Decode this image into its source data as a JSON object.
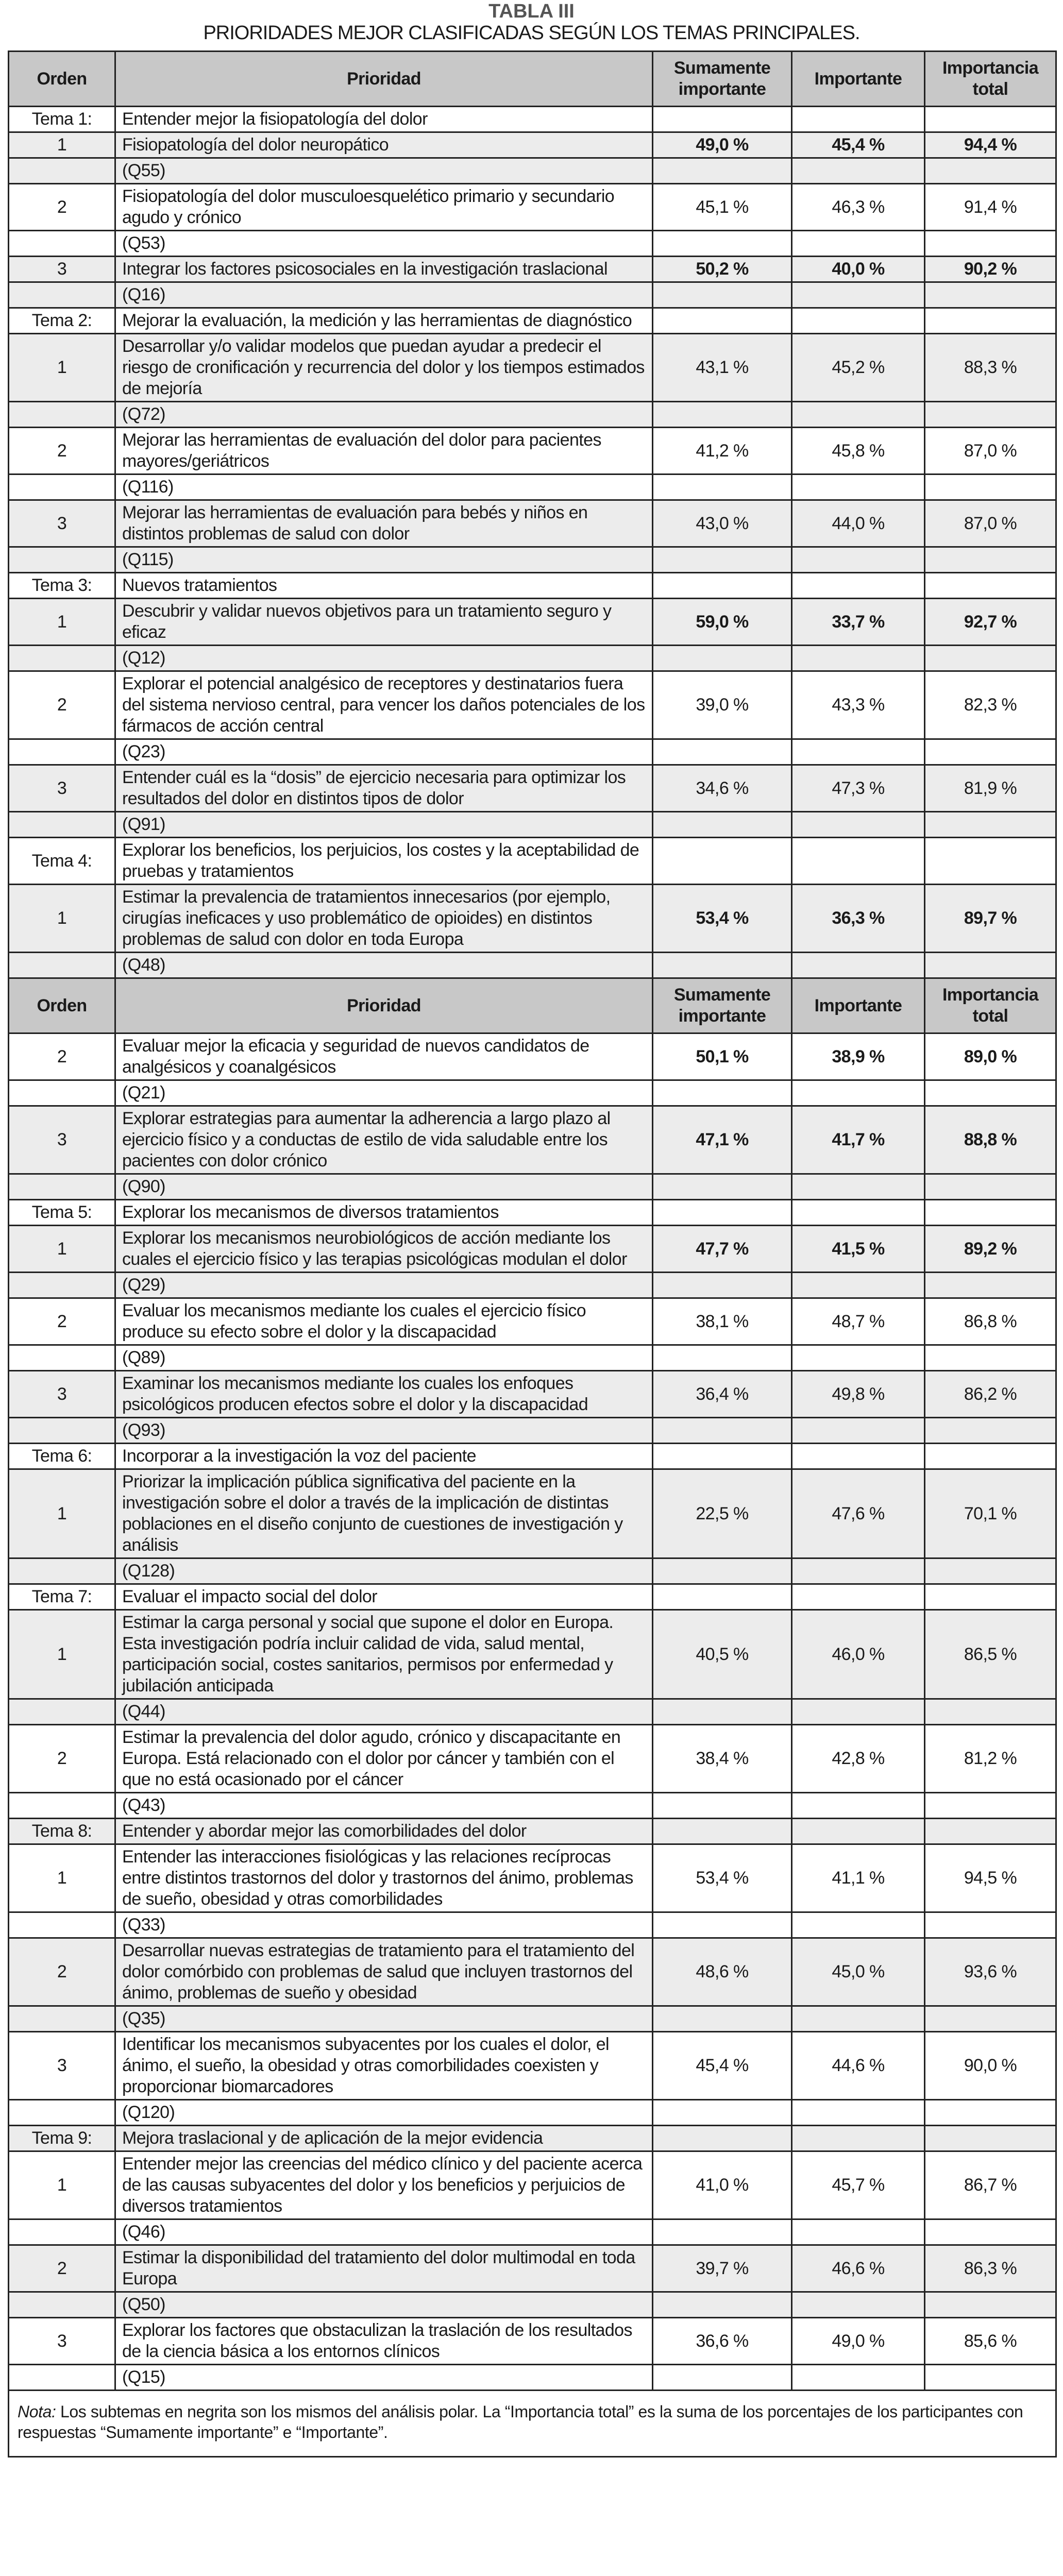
{
  "title": "TABLA III",
  "subtitle": "PRIORIDADES MEJOR CLASIFICADAS SEGÚN LOS TEMAS PRINCIPALES.",
  "headers": [
    "Orden",
    "Prioridad",
    "Sumamente importante",
    "Importante",
    "Importancia total"
  ],
  "rows": [
    {
      "type": "tema",
      "orden": "Tema 1:",
      "text": "Entender mejor la fisiopatología del dolor",
      "shade": false
    },
    {
      "type": "item",
      "orden": "1",
      "text": "Fisiopatología del dolor neuropático",
      "sum": "49,0 %",
      "imp": "45,4 %",
      "total": "94,4 %",
      "bold": true,
      "shade": true
    },
    {
      "type": "ref",
      "text": "(Q55)",
      "shade": true
    },
    {
      "type": "item",
      "orden": "2",
      "text": "Fisiopatología del dolor musculoesquelético primario y secundario agudo y crónico",
      "sum": "45,1 %",
      "imp": "46,3 %",
      "total": "91,4 %",
      "bold": false,
      "shade": false
    },
    {
      "type": "ref",
      "text": "(Q53)",
      "shade": false
    },
    {
      "type": "item",
      "orden": "3",
      "text": "Integrar los factores psicosociales en la investigación traslacional",
      "sum": "50,2  %",
      "imp": "40,0 %",
      "total": "90,2 %",
      "bold": true,
      "shade": true
    },
    {
      "type": "ref",
      "text": "(Q16)",
      "shade": true
    },
    {
      "type": "tema",
      "orden": "Tema 2:",
      "text": "Mejorar la evaluación, la medición y las herramientas de diagnóstico",
      "shade": false
    },
    {
      "type": "item",
      "orden": "1",
      "text": "Desarrollar y/o validar modelos que puedan ayudar a predecir el riesgo de cronificación y recurrencia del dolor y los tiempos estimados de mejoría",
      "sum": "43,1 %",
      "imp": "45,2 %",
      "total": "88,3 %",
      "bold": false,
      "shade": true
    },
    {
      "type": "ref",
      "text": "(Q72)",
      "shade": true
    },
    {
      "type": "item",
      "orden": "2",
      "text": "Mejorar las herramientas de evaluación del dolor para pacientes mayores/geriátricos",
      "sum": "41,2 %",
      "imp": "45,8 %",
      "total": "87,0 %",
      "bold": false,
      "shade": false
    },
    {
      "type": "ref",
      "text": "(Q116)",
      "shade": false
    },
    {
      "type": "item",
      "orden": "3",
      "text": "Mejorar las herramientas de evaluación para bebés y niños en distintos problemas de salud con dolor",
      "sum": "43,0 %",
      "imp": "44,0 %",
      "total": "87,0 %",
      "bold": false,
      "shade": true
    },
    {
      "type": "ref",
      "text": "(Q115)",
      "shade": true
    },
    {
      "type": "tema",
      "orden": "Tema 3:",
      "text": "Nuevos tratamientos",
      "shade": false
    },
    {
      "type": "item",
      "orden": "1",
      "text": "Descubrir y validar nuevos objetivos para un tratamiento seguro y eficaz",
      "sum": "59,0 %",
      "imp": "33,7 %",
      "total": "92,7 %",
      "bold": true,
      "shade": true
    },
    {
      "type": "ref",
      "text": "(Q12)",
      "shade": true
    },
    {
      "type": "item",
      "orden": "2",
      "text": "Explorar el potencial analgésico de receptores y destinatarios fuera del sistema nervioso central, para vencer los daños potenciales de los fármacos de acción central",
      "sum": "39,0 %",
      "imp": "43,3 %",
      "total": "82,3 %",
      "bold": false,
      "shade": false
    },
    {
      "type": "ref",
      "text": "(Q23)",
      "shade": false
    },
    {
      "type": "item",
      "orden": "3",
      "text": "Entender cuál es la “dosis” de ejercicio necesaria para optimizar los resultados del dolor en distintos tipos de dolor",
      "sum": "34,6 %",
      "imp": "47,3 %",
      "total": "81,9 %",
      "bold": false,
      "shade": true
    },
    {
      "type": "ref",
      "text": "(Q91)",
      "shade": true
    },
    {
      "type": "tema",
      "orden": "Tema 4:",
      "text": "Explorar los beneficios, los perjuicios, los costes y la aceptabilidad de pruebas y tratamientos",
      "shade": false
    },
    {
      "type": "item",
      "orden": "1",
      "text": "Estimar la prevalencia de tratamientos innecesarios (por ejemplo, cirugías ineficaces y uso problemático de opioides) en distintos problemas de salud con dolor en toda Europa",
      "sum": "53,4 %",
      "imp": "36,3 %",
      "total": "89,7 %",
      "bold": true,
      "shade": true
    },
    {
      "type": "ref",
      "text": "(Q48)",
      "shade": true
    },
    {
      "type": "header"
    },
    {
      "type": "item",
      "orden": "2",
      "text": "Evaluar mejor la eficacia y seguridad de nuevos candidatos de analgésicos y coanalgésicos",
      "sum": "50,1 %",
      "imp": "38,9 %",
      "total": "89,0 %",
      "bold": true,
      "shade": false
    },
    {
      "type": "ref",
      "text": "(Q21)",
      "shade": false
    },
    {
      "type": "item",
      "orden": "3",
      "text": "Explorar estrategias para aumentar la adherencia a largo plazo al ejercicio físico y a conductas de estilo de vida saludable entre los pacientes con dolor crónico",
      "sum": "47,1 %",
      "imp": "41,7 %",
      "total": "88,8 %",
      "bold": true,
      "shade": true
    },
    {
      "type": "ref",
      "text": "(Q90)",
      "shade": true
    },
    {
      "type": "tema",
      "orden": "Tema 5:",
      "text": "Explorar los mecanismos de diversos tratamientos",
      "shade": false
    },
    {
      "type": "item",
      "orden": "1",
      "text": "Explorar los mecanismos neurobiológicos de acción mediante los cuales el ejercicio físico y las terapias psicológicas modulan el dolor",
      "sum": "47,7 %",
      "imp": "41,5 %",
      "total": "89,2 %",
      "bold": true,
      "shade": true
    },
    {
      "type": "ref",
      "text": "(Q29)",
      "shade": true
    },
    {
      "type": "item",
      "orden": "2",
      "text": "Evaluar los mecanismos mediante los cuales el ejercicio físico produce su efecto sobre el dolor y la discapacidad",
      "sum": "38,1 %",
      "imp": "48,7 %",
      "total": "86,8 %",
      "bold": false,
      "shade": false
    },
    {
      "type": "ref",
      "text": "(Q89)",
      "shade": false
    },
    {
      "type": "item",
      "orden": "3",
      "text": "Examinar los mecanismos mediante los cuales los enfoques psicológicos producen efectos sobre el dolor y la discapacidad",
      "sum": "36,4 %",
      "imp": "49,8 %",
      "total": "86,2 %",
      "bold": false,
      "shade": true
    },
    {
      "type": "ref",
      "text": "(Q93)",
      "shade": true
    },
    {
      "type": "tema",
      "orden": "Tema 6:",
      "text": "Incorporar a la investigación la voz del paciente",
      "shade": false
    },
    {
      "type": "item",
      "orden": "1",
      "text": "Priorizar la implicación pública significativa del paciente en la investigación sobre el dolor a través de la implicación de distintas poblaciones en el diseño conjunto de cuestiones de investigación y análisis",
      "sum": "22,5 %",
      "imp": "47,6 %",
      "total": "70,1 %",
      "bold": false,
      "shade": true
    },
    {
      "type": "ref",
      "text": "(Q128)",
      "shade": true
    },
    {
      "type": "tema",
      "orden": "Tema 7:",
      "text": "Evaluar el impacto social del dolor",
      "shade": false
    },
    {
      "type": "item",
      "orden": "1",
      "text": "Estimar la carga personal y social que supone el dolor en Europa. Esta investigación podría incluir calidad de vida, salud mental, participación social, costes sanitarios, permisos por enfermedad y jubilación anticipada",
      "sum": "40,5 %",
      "imp": "46,0 %",
      "total": "86,5 %",
      "bold": false,
      "shade": true
    },
    {
      "type": "ref",
      "text": "(Q44)",
      "shade": true
    },
    {
      "type": "item",
      "orden": "2",
      "text": "Estimar la prevalencia del dolor agudo, crónico y discapacitante en Europa. Está relacionado con el dolor por cáncer y también con el que no está ocasionado por el cáncer",
      "sum": "38,4 %",
      "imp": "42,8 %",
      "total": "81,2 %",
      "bold": false,
      "shade": false
    },
    {
      "type": "ref",
      "text": "(Q43)",
      "shade": false
    },
    {
      "type": "tema",
      "orden": "Tema 8:",
      "text": "Entender y abordar mejor las comorbilidades del dolor",
      "shade": true
    },
    {
      "type": "item",
      "orden": "1",
      "text": "Entender las interacciones fisiológicas y las relaciones recíprocas entre distintos trastornos del dolor y trastornos del ánimo, problemas de sueño, obesidad y otras comorbilidades",
      "sum": "53,4 %",
      "imp": "41,1 %",
      "total": "94,5 %",
      "bold": false,
      "shade": false
    },
    {
      "type": "ref",
      "text": "(Q33)",
      "shade": false
    },
    {
      "type": "item",
      "orden": "2",
      "text": "Desarrollar nuevas estrategias de tratamiento para el tratamiento del dolor comórbido con problemas de salud que incluyen trastornos del ánimo, problemas de sueño y obesidad",
      "sum": "48,6 %",
      "imp": "45,0 %",
      "total": "93,6 %",
      "bold": false,
      "shade": true
    },
    {
      "type": "ref",
      "text": "(Q35)",
      "shade": true
    },
    {
      "type": "item",
      "orden": "3",
      "text": "Identificar los mecanismos subyacentes por los cuales el dolor, el ánimo, el sueño, la obesidad y otras comorbilidades coexisten y proporcionar biomarcadores",
      "sum": "45,4 %",
      "imp": "44,6 %",
      "total": "90,0 %",
      "bold": false,
      "shade": false
    },
    {
      "type": "ref",
      "text": "(Q120)",
      "shade": false
    },
    {
      "type": "tema",
      "orden": "Tema 9:",
      "text": "Mejora traslacional y de aplicación de la mejor evidencia",
      "shade": true
    },
    {
      "type": "item",
      "orden": "1",
      "text": "Entender mejor las creencias del médico clínico y del paciente acerca de las causas subyacentes del dolor y los beneficios y perjuicios de diversos tratamientos",
      "sum": "41,0 %",
      "imp": "45,7 %",
      "total": "86,7 %",
      "bold": false,
      "shade": false
    },
    {
      "type": "ref",
      "text": "(Q46)",
      "shade": false
    },
    {
      "type": "item",
      "orden": "2",
      "text": "Estimar la disponibilidad del tratamiento del dolor multimodal en toda Europa",
      "sum": "39,7 %",
      "imp": "46,6 %",
      "total": "86,3 %",
      "bold": false,
      "shade": true
    },
    {
      "type": "ref",
      "text": "(Q50)",
      "shade": true
    },
    {
      "type": "item",
      "orden": "3",
      "text": "Explorar los factores que obstaculizan la traslación de los resultados de la ciencia básica a los entornos clínicos",
      "sum": "36,6 %",
      "imp": "49,0 %",
      "total": "85,6 %",
      "bold": false,
      "shade": false
    },
    {
      "type": "ref",
      "text": "(Q15)",
      "shade": false
    }
  ],
  "note": {
    "label": "Nota:",
    "text": " Los subtemas en negrita son los mismos del análisis polar. La “Importancia total” es la suma de los porcentajes de los participantes con respuestas “Sumamente importante” e “Importante”."
  }
}
